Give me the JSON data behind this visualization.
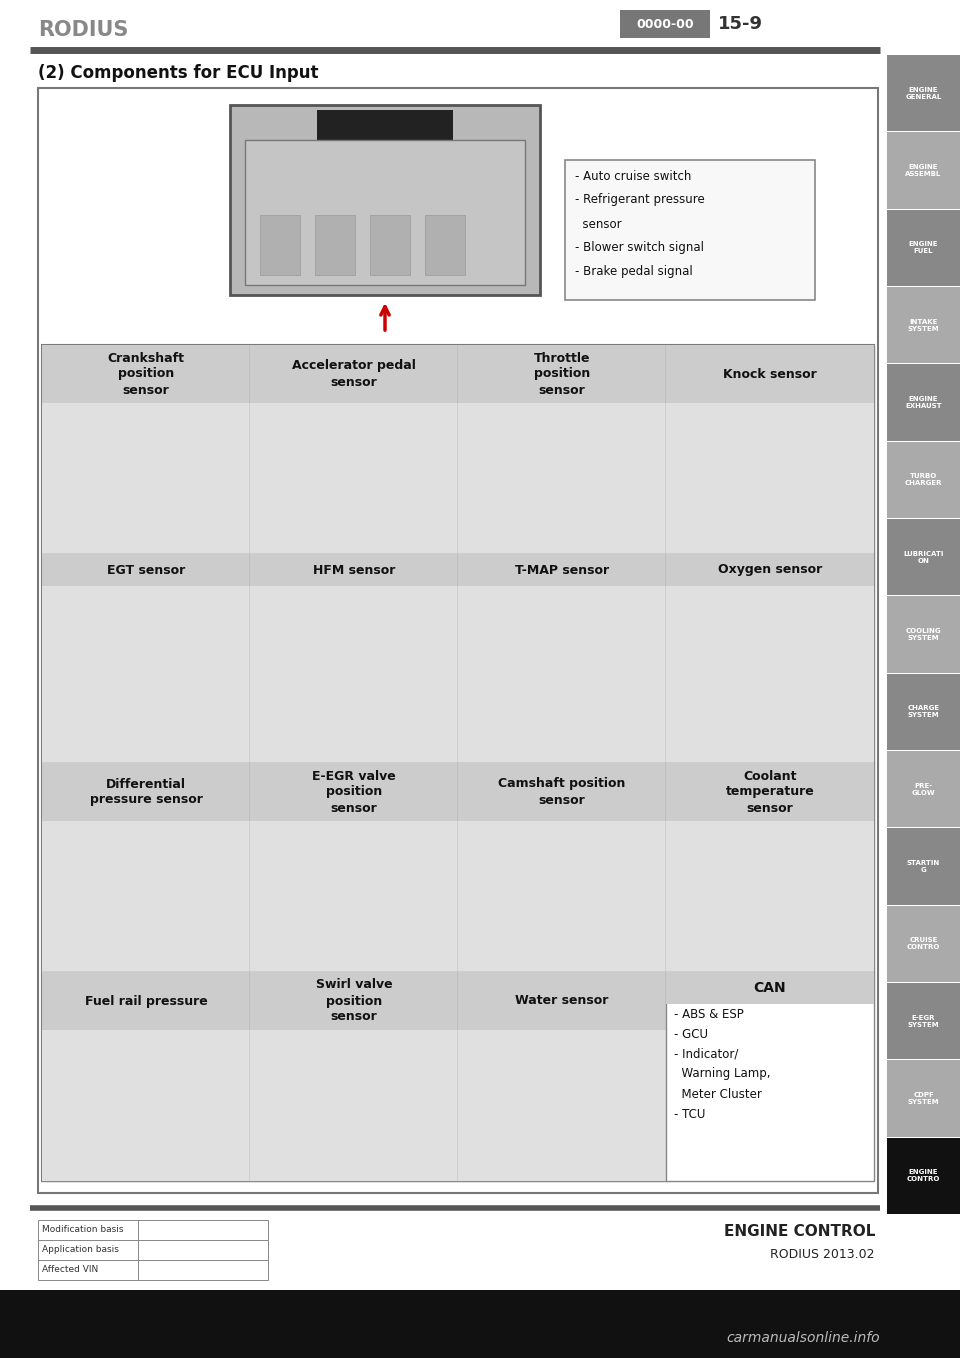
{
  "page_title": "RODIUS",
  "page_code": "0000-00",
  "page_number": "15-9",
  "section_title": "(2) Components for ECU Input",
  "footer_left": [
    "Modification basis",
    "Application basis",
    "Affected VIN"
  ],
  "footer_right_line1": "ENGINE CONTROL",
  "footer_right_line2": "RODIUS 2013.02",
  "sidebar_labels": [
    "ENGINE\nGENERAL",
    "ENGINE\nASSEMBL",
    "ENGINE\nFUEL",
    "INTAKE\nSYSTEM",
    "ENGINE\nEXHAUST",
    "TURBO\nCHARGER",
    "LUBRICATI\nON",
    "COOLING\nSYSTEM",
    "CHARGE\nSYSTEM",
    "PRE-\nGLOW",
    "STARTIN\nG",
    "CRUISE\nCONTRO",
    "E-EGR\nSYSTEM",
    "CDPF\nSYSTEM",
    "ENGINE\nCONTRO"
  ],
  "ecu_note_lines": [
    "- Auto cruise switch",
    "- Refrigerant pressure",
    "  sensor",
    "- Blower switch signal",
    "- Brake pedal signal"
  ],
  "grid_cells": [
    {
      "row": 0,
      "col": 0,
      "label": "Crankshaft\nposition\nsensor",
      "is_can": false
    },
    {
      "row": 0,
      "col": 1,
      "label": "Accelerator pedal\nsensor",
      "is_can": false
    },
    {
      "row": 0,
      "col": 2,
      "label": "Throttle\nposition\nsensor",
      "is_can": false
    },
    {
      "row": 0,
      "col": 3,
      "label": "Knock sensor",
      "is_can": false
    },
    {
      "row": 1,
      "col": 0,
      "label": "EGT sensor",
      "is_can": false
    },
    {
      "row": 1,
      "col": 1,
      "label": "HFM sensor",
      "is_can": false
    },
    {
      "row": 1,
      "col": 2,
      "label": "T-MAP sensor",
      "is_can": false
    },
    {
      "row": 1,
      "col": 3,
      "label": "Oxygen sensor",
      "is_can": false
    },
    {
      "row": 2,
      "col": 0,
      "label": "Differential\npressure sensor",
      "is_can": false
    },
    {
      "row": 2,
      "col": 1,
      "label": "E-EGR valve\nposition\nsensor",
      "is_can": false
    },
    {
      "row": 2,
      "col": 2,
      "label": "Camshaft position\nsensor",
      "is_can": false
    },
    {
      "row": 2,
      "col": 3,
      "label": "Coolant\ntemperature\nsensor",
      "is_can": false
    },
    {
      "row": 3,
      "col": 0,
      "label": "Fuel rail pressure",
      "is_can": false
    },
    {
      "row": 3,
      "col": 1,
      "label": "Swirl valve\nposition\nsensor",
      "is_can": false
    },
    {
      "row": 3,
      "col": 2,
      "label": "Water sensor",
      "is_can": false
    },
    {
      "row": 3,
      "col": 3,
      "label": "CAN",
      "is_can": true,
      "can_lines": [
        "- ABS & ESP",
        "- GCU",
        "- Indicator/",
        "  Warning Lamp,",
        "  Meter Cluster",
        "- TCU"
      ]
    }
  ],
  "bg_color": "#ffffff",
  "header_line_color": "#555555",
  "cell_header_bg": "#cccccc",
  "cell_img_bg": "#e0e0e0",
  "outer_border_color": "#777777",
  "title_color": "#888888",
  "page_num_box_color": "#777777",
  "page_num_text_color": "#ffffff",
  "sidebar_color_even": "#888888",
  "sidebar_color_odd": "#aaaaaa",
  "sidebar_color_active": "#111111",
  "sidebar_text_color": "#ffffff",
  "footer_border_color": "#555555",
  "note_border_color": "#888888",
  "arrow_color": "#cc0000"
}
